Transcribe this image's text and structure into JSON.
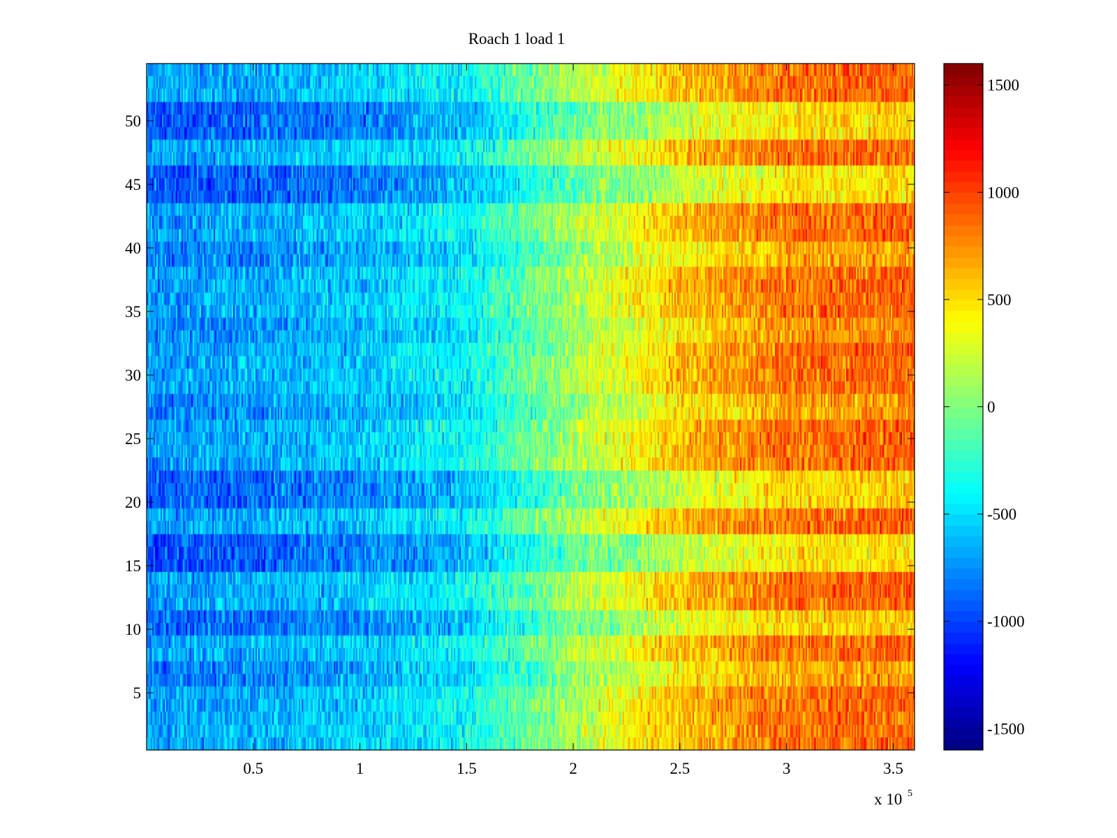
{
  "chart_data": {
    "type": "heatmap",
    "title": "Roach 1 load 1",
    "xlabel": "",
    "ylabel": "",
    "colormap": "jet",
    "x_range": [
      0,
      360000
    ],
    "y_range": [
      0.5,
      54.5
    ],
    "n_rows": 54,
    "x_ticks": [
      50000,
      100000,
      150000,
      200000,
      250000,
      300000,
      350000
    ],
    "x_tick_labels": [
      "0.5",
      "1",
      "1.5",
      "2",
      "2.5",
      "3",
      "3.5"
    ],
    "x_exponent_label": "x 10",
    "x_exponent": "5",
    "y_ticks": [
      5,
      10,
      15,
      20,
      25,
      30,
      35,
      40,
      45,
      50
    ],
    "y_tick_labels": [
      "5",
      "10",
      "15",
      "20",
      "25",
      "30",
      "35",
      "40",
      "45",
      "50"
    ],
    "colorbar": {
      "range": [
        -1600,
        1600
      ],
      "ticks": [
        1500,
        1000,
        500,
        0,
        -500,
        -1000,
        -1500
      ],
      "tick_labels": [
        "1500",
        "1000",
        "500",
        "0",
        "-500",
        "-1000",
        "-1500"
      ]
    },
    "trend_profile": {
      "x": [
        0,
        50000,
        100000,
        150000,
        200000,
        250000,
        300000,
        360000
      ],
      "value": [
        -700,
        -650,
        -550,
        -380,
        150,
        600,
        850,
        900
      ]
    },
    "row_bias": [
      {
        "rows": [
          1,
          3
        ],
        "bias": 0
      },
      {
        "rows": [
          6,
          7
        ],
        "bias": -120
      },
      {
        "rows": [
          10,
          11
        ],
        "bias": -200
      },
      {
        "rows": [
          15,
          17
        ],
        "bias": -250
      },
      {
        "rows": [
          20,
          22
        ],
        "bias": -220
      },
      {
        "rows": [
          27,
          28
        ],
        "bias": -100
      },
      {
        "rows": [
          33,
          34
        ],
        "bias": -80
      },
      {
        "rows": [
          39,
          40
        ],
        "bias": -120
      },
      {
        "rows": [
          44,
          46
        ],
        "bias": -250
      },
      {
        "rows": [
          49,
          51
        ],
        "bias": -230
      }
    ]
  }
}
